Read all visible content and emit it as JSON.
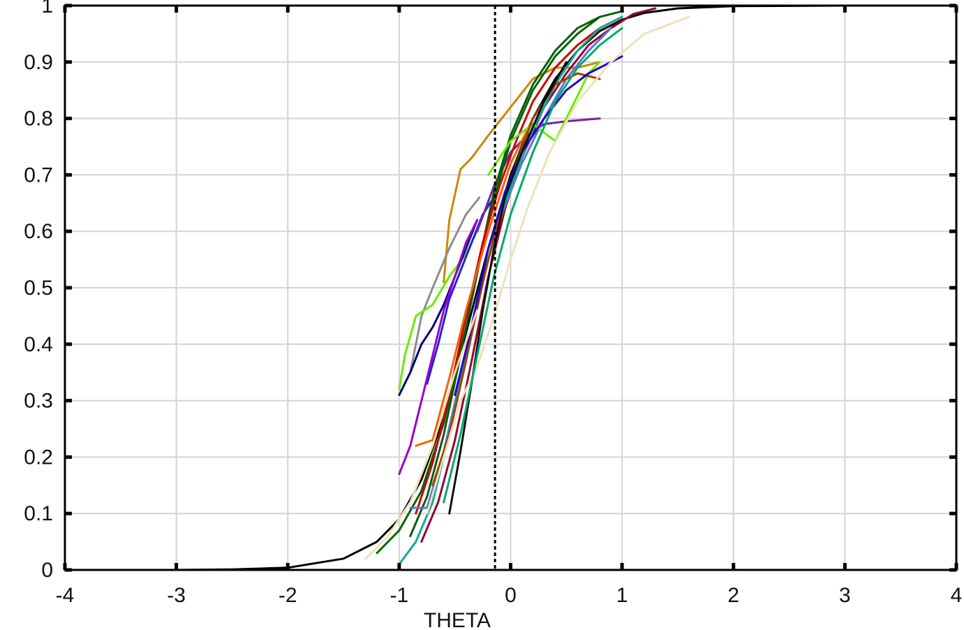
{
  "chart_data": {
    "type": "line",
    "title": "",
    "xlabel": "THETA",
    "ylabel": "",
    "xlim": [
      -4,
      4
    ],
    "ylim": [
      0,
      1
    ],
    "grid": true,
    "x_ticks": [
      -4,
      -3,
      -2,
      -1,
      0,
      1,
      2,
      3,
      4
    ],
    "x_tick_labels": [
      "-4",
      "-3",
      "-2",
      "-1",
      "0",
      "1",
      "2",
      "3",
      "4"
    ],
    "y_ticks": [
      0,
      0.1,
      0.2,
      0.3,
      0.4,
      0.5,
      0.6,
      0.7,
      0.8,
      0.9,
      1
    ],
    "y_tick_labels": [
      "0",
      "0.1",
      "0.2",
      "0.3",
      "0.4",
      "0.5",
      "0.6",
      "0.7",
      "0.8",
      "0.9",
      "1"
    ],
    "reference_line": {
      "x": -0.14,
      "style": "dotted",
      "color": "#000000"
    },
    "series": [
      {
        "color": "#000000",
        "x": [
          -4,
          -3,
          -2.5,
          -2,
          -1.5,
          -1.2,
          -1,
          -0.8,
          -0.6,
          -0.4,
          -0.2,
          0,
          0.2,
          0.4,
          0.6,
          0.8,
          1,
          1.2,
          1.5,
          2,
          3,
          4
        ],
        "y": [
          0.0,
          0.0,
          0.001,
          0.004,
          0.02,
          0.05,
          0.09,
          0.16,
          0.27,
          0.42,
          0.57,
          0.7,
          0.8,
          0.87,
          0.92,
          0.955,
          0.975,
          0.987,
          0.995,
          0.999,
          1.0,
          1.0
        ]
      },
      {
        "color": "#cc8800",
        "x": [
          -0.6,
          -0.55,
          -0.45,
          -0.35,
          -0.2,
          0,
          0.2,
          0.4,
          0.6,
          0.8
        ],
        "y": [
          0.51,
          0.62,
          0.71,
          0.73,
          0.77,
          0.82,
          0.87,
          0.89,
          0.89,
          0.9
        ]
      },
      {
        "color": "#8d8d8d",
        "x": [
          -0.9,
          -0.8,
          -0.7,
          -0.55,
          -0.4,
          -0.28
        ],
        "y": [
          0.35,
          0.45,
          0.5,
          0.57,
          0.63,
          0.66
        ]
      },
      {
        "color": "#66ee00",
        "x": [
          -1,
          -0.95,
          -0.85,
          -0.7,
          -0.55,
          -0.4,
          -0.3
        ],
        "y": [
          0.32,
          0.38,
          0.45,
          0.47,
          0.52,
          0.56,
          0.6
        ]
      },
      {
        "color": "#00007a",
        "x": [
          -1,
          -0.9,
          -0.8,
          -0.7,
          -0.6,
          -0.5,
          -0.4,
          -0.3
        ],
        "y": [
          0.31,
          0.35,
          0.4,
          0.43,
          0.47,
          0.52,
          0.57,
          0.62
        ]
      },
      {
        "color": "#2222dd",
        "x": [
          -0.75,
          -0.65,
          -0.55,
          -0.45,
          -0.35,
          -0.25,
          -0.15
        ],
        "y": [
          0.33,
          0.4,
          0.48,
          0.53,
          0.58,
          0.63,
          0.66
        ]
      },
      {
        "color": "#9900cc",
        "x": [
          -1,
          -0.9,
          -0.8,
          -0.7,
          -0.6,
          -0.5,
          -0.4,
          -0.3
        ],
        "y": [
          0.17,
          0.22,
          0.3,
          0.38,
          0.46,
          0.52,
          0.58,
          0.62
        ]
      },
      {
        "color": "#7a1fa2",
        "x": [
          -0.3,
          -0.15,
          0,
          0.15,
          0.3,
          0.5,
          0.8
        ],
        "y": [
          0.6,
          0.68,
          0.74,
          0.77,
          0.79,
          0.795,
          0.8
        ]
      },
      {
        "color": "#006600",
        "x": [
          -1.2,
          -1.0,
          -0.8,
          -0.6,
          -0.4,
          -0.2,
          0,
          0.2,
          0.4,
          0.6,
          0.8,
          1.0
        ],
        "y": [
          0.03,
          0.07,
          0.14,
          0.26,
          0.43,
          0.62,
          0.76,
          0.85,
          0.91,
          0.95,
          0.98,
          0.99
        ]
      },
      {
        "color": "#0a5c0a",
        "x": [
          -0.9,
          -0.75,
          -0.6,
          -0.45,
          -0.3,
          -0.15,
          0,
          0.2,
          0.4,
          0.6,
          0.8
        ],
        "y": [
          0.06,
          0.13,
          0.24,
          0.38,
          0.53,
          0.67,
          0.77,
          0.86,
          0.92,
          0.96,
          0.98
        ]
      },
      {
        "color": "#cc0000",
        "x": [
          -0.85,
          -0.7,
          -0.55,
          -0.4,
          -0.25,
          -0.1,
          0.05,
          0.2,
          0.4,
          0.6,
          0.8,
          1.0
        ],
        "y": [
          0.1,
          0.19,
          0.31,
          0.45,
          0.58,
          0.68,
          0.76,
          0.83,
          0.89,
          0.93,
          0.96,
          0.98
        ]
      },
      {
        "color": "#990033",
        "x": [
          -0.8,
          -0.65,
          -0.5,
          -0.35,
          -0.2,
          -0.05,
          0.1,
          0.3,
          0.5,
          0.7,
          0.9,
          1.1,
          1.3
        ],
        "y": [
          0.05,
          0.12,
          0.23,
          0.37,
          0.52,
          0.64,
          0.73,
          0.82,
          0.88,
          0.93,
          0.96,
          0.985,
          0.995
        ]
      },
      {
        "color": "#ee6600",
        "x": [
          -0.85,
          -0.7,
          -0.55,
          -0.4,
          -0.2,
          0,
          0.2,
          0.4
        ],
        "y": [
          0.22,
          0.23,
          0.34,
          0.46,
          0.6,
          0.72,
          0.8,
          0.86
        ]
      },
      {
        "color": "#5577dd",
        "x": [
          -0.9,
          -0.75,
          -0.6,
          -0.45,
          -0.3,
          -0.1,
          0.1,
          0.3,
          0.5,
          0.7,
          0.9
        ],
        "y": [
          0.11,
          0.11,
          0.21,
          0.34,
          0.48,
          0.62,
          0.72,
          0.8,
          0.87,
          0.92,
          0.96
        ]
      },
      {
        "color": "#11aa99",
        "x": [
          -1,
          -0.85,
          -0.7,
          -0.55,
          -0.4,
          -0.2,
          0,
          0.2,
          0.4,
          0.6,
          0.8,
          1.0
        ],
        "y": [
          0.01,
          0.05,
          0.12,
          0.24,
          0.38,
          0.55,
          0.68,
          0.78,
          0.86,
          0.92,
          0.96,
          0.98
        ]
      },
      {
        "color": "#66ee00",
        "x": [
          -0.2,
          0,
          0.2,
          0.4,
          0.5,
          0.6,
          0.7,
          0.8
        ],
        "y": [
          0.7,
          0.76,
          0.79,
          0.76,
          0.8,
          0.84,
          0.88,
          0.9
        ]
      },
      {
        "color": "#994400",
        "x": [
          -0.7,
          -0.55,
          -0.4,
          -0.25,
          -0.1,
          0.05,
          0.2,
          0.4,
          0.6,
          0.8
        ],
        "y": [
          0.15,
          0.24,
          0.37,
          0.51,
          0.63,
          0.72,
          0.8,
          0.86,
          0.88,
          0.87
        ]
      },
      {
        "color": "#2200cc",
        "x": [
          -0.5,
          -0.35,
          -0.2,
          -0.05,
          0.1,
          0.3,
          0.5,
          0.7,
          1.0
        ],
        "y": [
          0.31,
          0.43,
          0.57,
          0.67,
          0.74,
          0.8,
          0.85,
          0.88,
          0.91
        ]
      },
      {
        "color": "#f2e0b8",
        "x": [
          -0.75,
          -0.6,
          -0.45,
          -0.3,
          -0.15,
          0,
          0.15,
          0.35,
          0.6,
          0.9,
          1.2,
          1.6
        ],
        "y": [
          0.1,
          0.2,
          0.3,
          0.36,
          0.45,
          0.55,
          0.64,
          0.74,
          0.83,
          0.9,
          0.95,
          0.98
        ]
      },
      {
        "color": "#f2e0b8",
        "x": [
          -1.3,
          -1.1,
          -0.9,
          -0.7,
          -0.5,
          -0.3
        ],
        "y": [
          0.02,
          0.06,
          0.12,
          0.22,
          0.35,
          0.46
        ]
      },
      {
        "color": "#111111",
        "x": [
          -0.55,
          -0.45,
          -0.35,
          -0.25,
          -0.15,
          -0.05,
          0.1,
          0.3,
          0.5
        ],
        "y": [
          0.1,
          0.21,
          0.33,
          0.46,
          0.57,
          0.66,
          0.74,
          0.83,
          0.9
        ]
      },
      {
        "color": "#00aa66",
        "x": [
          -0.6,
          -0.45,
          -0.3,
          -0.15,
          0,
          0.2,
          0.4,
          0.6,
          0.8,
          1.0
        ],
        "y": [
          0.12,
          0.24,
          0.38,
          0.52,
          0.63,
          0.74,
          0.83,
          0.89,
          0.93,
          0.96
        ]
      }
    ]
  }
}
